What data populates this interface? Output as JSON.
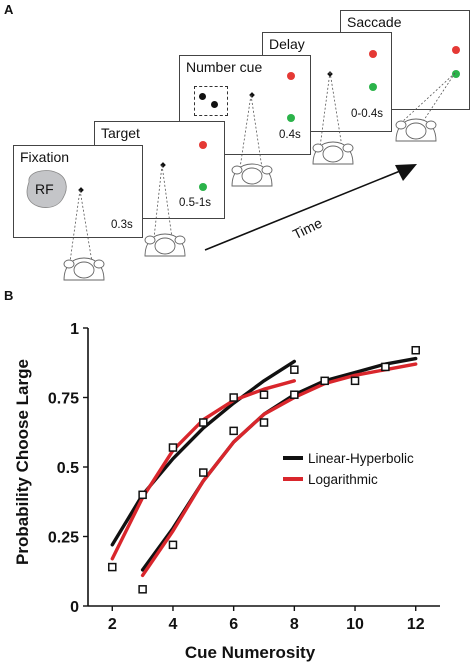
{
  "panel_a": {
    "letter": "A",
    "stages": [
      {
        "title": "Fixation",
        "duration": "0.3s",
        "rf": "RF"
      },
      {
        "title": "Target",
        "duration": "0.5-1s"
      },
      {
        "title": "Number cue",
        "duration": "0.4s"
      },
      {
        "title": "Delay",
        "duration": "0-0.4s"
      },
      {
        "title": "Saccade"
      }
    ],
    "time_label": "Time",
    "colors": {
      "target_red": "#e53935",
      "target_green": "#2bb34a",
      "rf_fill": "#c4c5c8"
    }
  },
  "panel_b": {
    "letter": "B"
  },
  "chart_data": {
    "type": "line",
    "xlabel": "Cue Numerosity",
    "ylabel": "Probability Choose Large",
    "xlim": [
      1.2,
      12.8
    ],
    "ylim": [
      0,
      1
    ],
    "x_ticks": [
      "2",
      "4",
      "6",
      "8",
      "10",
      "12"
    ],
    "y_ticks": [
      "0",
      "0.25",
      "0.5",
      "0.75",
      "1"
    ],
    "legend_position": "right-middle",
    "series": [
      {
        "name": "Linear-Hyperbolic",
        "color": "#111111",
        "curves": [
          {
            "x": [
              2,
              3,
              4,
              5,
              6,
              7,
              8
            ],
            "y": [
              0.22,
              0.4,
              0.53,
              0.64,
              0.73,
              0.81,
              0.88
            ]
          },
          {
            "x": [
              3,
              4,
              5,
              6,
              7,
              8,
              9,
              10,
              11,
              12
            ],
            "y": [
              0.13,
              0.28,
              0.45,
              0.59,
              0.69,
              0.76,
              0.81,
              0.84,
              0.87,
              0.89
            ]
          }
        ]
      },
      {
        "name": "Logarithmic",
        "color": "#d9262c",
        "curves": [
          {
            "x": [
              2,
              3,
              4,
              5,
              6,
              7,
              8
            ],
            "y": [
              0.17,
              0.39,
              0.56,
              0.67,
              0.74,
              0.78,
              0.81
            ]
          },
          {
            "x": [
              3,
              4,
              5,
              6,
              7,
              8,
              9,
              10,
              11,
              12
            ],
            "y": [
              0.11,
              0.27,
              0.45,
              0.59,
              0.69,
              0.75,
              0.8,
              0.83,
              0.85,
              0.87
            ]
          }
        ]
      }
    ],
    "data_points": [
      {
        "x": 2,
        "y": 0.14
      },
      {
        "x": 3,
        "y": 0.4
      },
      {
        "x": 4,
        "y": 0.57
      },
      {
        "x": 5,
        "y": 0.66
      },
      {
        "x": 6,
        "y": 0.75
      },
      {
        "x": 7,
        "y": 0.76
      },
      {
        "x": 8,
        "y": 0.85
      },
      {
        "x": 3,
        "y": 0.06
      },
      {
        "x": 4,
        "y": 0.22
      },
      {
        "x": 5,
        "y": 0.48
      },
      {
        "x": 6,
        "y": 0.63
      },
      {
        "x": 7,
        "y": 0.66
      },
      {
        "x": 8,
        "y": 0.76
      },
      {
        "x": 9,
        "y": 0.81
      },
      {
        "x": 10,
        "y": 0.81
      },
      {
        "x": 11,
        "y": 0.86
      },
      {
        "x": 12,
        "y": 0.92
      }
    ],
    "grid": false
  }
}
